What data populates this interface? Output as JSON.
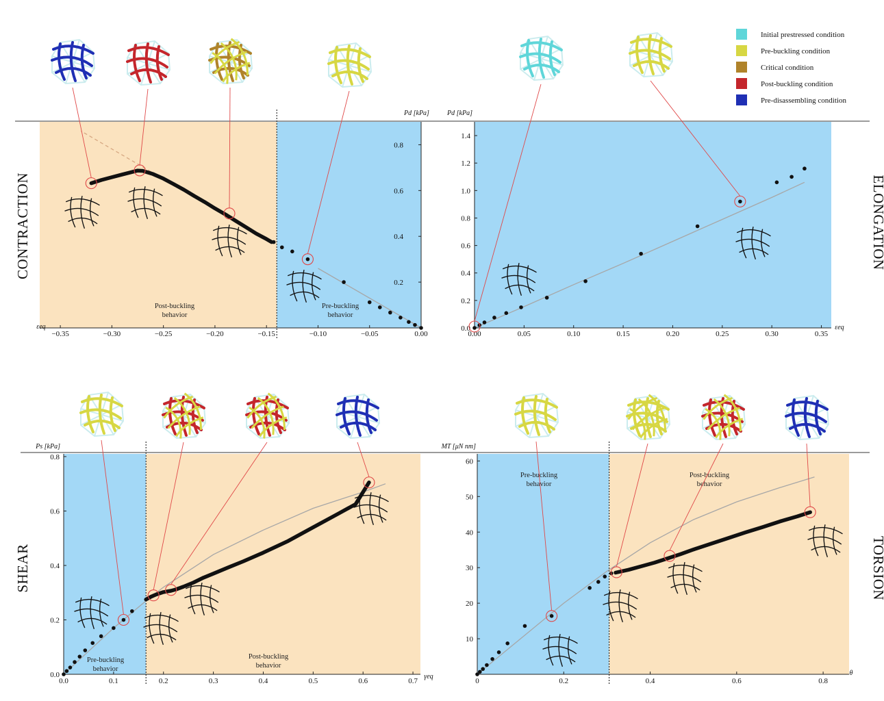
{
  "legend": [
    {
      "label": "Initial prestressed condition",
      "color": "#5fd6d9"
    },
    {
      "label": "Pre-buckling condition",
      "color": "#d7d743"
    },
    {
      "label": "Critical condition",
      "color": "#b0832a"
    },
    {
      "label": "Post-buckling condition",
      "color": "#c4262c"
    },
    {
      "label": "Pre-disassembling condition",
      "color": "#1f2fb4"
    }
  ],
  "colors": {
    "pre_buckling_region": "#a3d8f6",
    "post_buckling_region": "#fbe3bf",
    "marker": "#e04848",
    "data": "#111111",
    "fit": "#a7a7a7"
  },
  "chart_data": [
    {
      "id": "contraction",
      "type": "scatter",
      "panel_label": "CONTRACTION",
      "xlabel": "εeq",
      "ylabel": "Pd [kPa]",
      "xlim": [
        -0.37,
        0.0
      ],
      "ylim": [
        0.0,
        0.9
      ],
      "xticks": [
        -0.35,
        -0.3,
        -0.25,
        -0.2,
        -0.15,
        -0.1,
        -0.05,
        0.0
      ],
      "xtick_labels": [
        "−0.35",
        "−0.30",
        "−0.25",
        "−0.20",
        "−0.15",
        "−0.10",
        "−0.05",
        "0.00"
      ],
      "yticks": [
        0.2,
        0.4,
        0.6,
        0.8
      ],
      "ytick_labels": [
        "0.2",
        "0.4",
        "0.6",
        "0.8"
      ],
      "divider_x": -0.14,
      "regions": [
        {
          "label": [
            "Post-buckling",
            "behavior"
          ],
          "from": -0.37,
          "to": -0.14,
          "kind": "post"
        },
        {
          "label": [
            "Pre-buckling",
            "behavior"
          ],
          "from": -0.14,
          "to": 0.0,
          "kind": "pre"
        }
      ],
      "points": [
        [
          0.0,
          0.0
        ],
        [
          -0.006,
          0.013
        ],
        [
          -0.012,
          0.026
        ],
        [
          -0.02,
          0.045
        ],
        [
          -0.03,
          0.067
        ],
        [
          -0.04,
          0.09
        ],
        [
          -0.05,
          0.112
        ],
        [
          -0.075,
          0.2
        ],
        [
          -0.11,
          0.3
        ],
        [
          -0.125,
          0.334
        ],
        [
          -0.135,
          0.352
        ],
        [
          -0.143,
          0.375
        ]
      ],
      "curve": [
        [
          -0.145,
          0.375
        ],
        [
          -0.15,
          0.388
        ],
        [
          -0.16,
          0.412
        ],
        [
          -0.17,
          0.44
        ],
        [
          -0.18,
          0.468
        ],
        [
          -0.19,
          0.496
        ],
        [
          -0.2,
          0.522
        ],
        [
          -0.21,
          0.55
        ],
        [
          -0.22,
          0.576
        ],
        [
          -0.23,
          0.603
        ],
        [
          -0.24,
          0.628
        ],
        [
          -0.25,
          0.652
        ],
        [
          -0.26,
          0.672
        ],
        [
          -0.27,
          0.686
        ],
        [
          -0.275,
          0.687
        ],
        [
          -0.29,
          0.67
        ],
        [
          -0.3,
          0.658
        ],
        [
          -0.31,
          0.646
        ],
        [
          -0.32,
          0.632
        ]
      ],
      "fit": [
        [
          0.0,
          0.0
        ],
        [
          -0.1,
          0.26
        ],
        [
          -0.2,
          0.52
        ],
        [
          -0.33,
          0.86
        ]
      ],
      "fit_dashed_from": -0.14,
      "markers": [
        [
          -0.32,
          0.632
        ],
        [
          -0.273,
          0.688
        ],
        [
          -0.186,
          0.5
        ],
        [
          -0.11,
          0.3
        ]
      ]
    },
    {
      "id": "elongation",
      "type": "scatter",
      "panel_label": "ELONGATION",
      "xlabel": "εeq",
      "ylabel": "Pd [kPa]",
      "xlim": [
        0.0,
        0.36
      ],
      "ylim": [
        0.0,
        1.5
      ],
      "xticks": [
        0.0,
        0.05,
        0.1,
        0.15,
        0.2,
        0.25,
        0.3,
        0.35
      ],
      "xtick_labels": [
        "0.00",
        "0.05",
        "0.10",
        "0.15",
        "0.20",
        "0.25",
        "0.30",
        "0.35"
      ],
      "yticks": [
        0.0,
        0.2,
        0.4,
        0.6,
        0.8,
        1.0,
        1.2,
        1.4
      ],
      "ytick_labels": [
        "0.0",
        "0.2",
        "0.4",
        "0.6",
        "0.8",
        "1.0",
        "1.2",
        "1.4"
      ],
      "divider_x": null,
      "regions": [
        {
          "label": [],
          "from": 0.0,
          "to": 0.36,
          "kind": "pre"
        }
      ],
      "points": [
        [
          0.0,
          0.0
        ],
        [
          0.005,
          0.02
        ],
        [
          0.01,
          0.04
        ],
        [
          0.02,
          0.075
        ],
        [
          0.032,
          0.108
        ],
        [
          0.047,
          0.15
        ],
        [
          0.073,
          0.22
        ],
        [
          0.112,
          0.34
        ],
        [
          0.168,
          0.54
        ],
        [
          0.225,
          0.74
        ],
        [
          0.268,
          0.92
        ],
        [
          0.305,
          1.06
        ],
        [
          0.32,
          1.1
        ],
        [
          0.333,
          1.16
        ]
      ],
      "curve": [],
      "fit": [
        [
          0.0,
          0.0
        ],
        [
          0.05,
          0.155
        ],
        [
          0.1,
          0.315
        ],
        [
          0.15,
          0.47
        ],
        [
          0.2,
          0.63
        ],
        [
          0.25,
          0.79
        ],
        [
          0.3,
          0.95
        ],
        [
          0.333,
          1.06
        ]
      ],
      "fit_dashed_from": null,
      "markers": [
        [
          0.0,
          0.01
        ],
        [
          0.268,
          0.92
        ]
      ]
    },
    {
      "id": "shear",
      "type": "scatter",
      "panel_label": "SHEAR",
      "xlabel": "γeq",
      "ylabel": "Ps [kPa]",
      "xlim": [
        0.0,
        0.715
      ],
      "ylim": [
        0.0,
        0.81
      ],
      "xticks": [
        0.0,
        0.1,
        0.2,
        0.3,
        0.4,
        0.5,
        0.6,
        0.7
      ],
      "xtick_labels": [
        "0.0",
        "0.1",
        "0.2",
        "0.3",
        "0.4",
        "0.5",
        "0.6",
        "0.7"
      ],
      "yticks": [
        0.0,
        0.2,
        0.4,
        0.6,
        0.8
      ],
      "ytick_labels": [
        "0.0",
        "0.2",
        "0.4",
        "0.6",
        "0.8"
      ],
      "divider_x": 0.165,
      "regions": [
        {
          "label": [
            "Pre-buckling",
            "behavior"
          ],
          "from": 0.0,
          "to": 0.165,
          "kind": "pre"
        },
        {
          "label": [
            "Post-buckling",
            "behavior"
          ],
          "from": 0.165,
          "to": 0.715,
          "kind": "post"
        }
      ],
      "points": [
        [
          0.0,
          0.0
        ],
        [
          0.006,
          0.012
        ],
        [
          0.013,
          0.025
        ],
        [
          0.022,
          0.045
        ],
        [
          0.032,
          0.065
        ],
        [
          0.043,
          0.088
        ],
        [
          0.058,
          0.115
        ],
        [
          0.075,
          0.14
        ],
        [
          0.1,
          0.17
        ],
        [
          0.12,
          0.2
        ],
        [
          0.137,
          0.232
        ]
      ],
      "curve": [
        [
          0.165,
          0.275
        ],
        [
          0.175,
          0.285
        ],
        [
          0.185,
          0.293
        ],
        [
          0.2,
          0.302
        ],
        [
          0.215,
          0.307
        ],
        [
          0.225,
          0.312
        ],
        [
          0.24,
          0.322
        ],
        [
          0.26,
          0.337
        ],
        [
          0.28,
          0.355
        ],
        [
          0.3,
          0.37
        ],
        [
          0.33,
          0.393
        ],
        [
          0.36,
          0.415
        ],
        [
          0.4,
          0.447
        ],
        [
          0.45,
          0.49
        ],
        [
          0.5,
          0.54
        ],
        [
          0.55,
          0.59
        ],
        [
          0.585,
          0.625
        ],
        [
          0.612,
          0.705
        ]
      ],
      "fit": [
        [
          0.0,
          0.0
        ],
        [
          0.1,
          0.17
        ],
        [
          0.165,
          0.27
        ],
        [
          0.2,
          0.32
        ],
        [
          0.3,
          0.44
        ],
        [
          0.4,
          0.53
        ],
        [
          0.5,
          0.61
        ],
        [
          0.6,
          0.67
        ],
        [
          0.645,
          0.7
        ]
      ],
      "fit_dashed_from": null,
      "markers": [
        [
          0.12,
          0.2
        ],
        [
          0.18,
          0.29
        ],
        [
          0.215,
          0.31
        ],
        [
          0.612,
          0.705
        ]
      ]
    },
    {
      "id": "torsion",
      "type": "scatter",
      "panel_label": "TORSION",
      "xlabel": "θ",
      "ylabel": "MT [μN nm]",
      "xlim": [
        0.0,
        0.86
      ],
      "ylim": [
        0.0,
        62
      ],
      "xticks": [
        0.0,
        0.2,
        0.4,
        0.6,
        0.8
      ],
      "xtick_labels": [
        "0",
        "0.2",
        "0.4",
        "0.6",
        "0.8"
      ],
      "yticks": [
        10,
        20,
        30,
        40,
        50,
        60
      ],
      "ytick_labels": [
        "10",
        "20",
        "30",
        "40",
        "50",
        "60"
      ],
      "divider_x": 0.305,
      "regions": [
        {
          "label": [
            "Pre-buckling",
            "behavior"
          ],
          "from": 0.0,
          "to": 0.305,
          "kind": "pre"
        },
        {
          "label": [
            "Post-buckling",
            "behavior"
          ],
          "from": 0.305,
          "to": 0.86,
          "kind": "post"
        }
      ],
      "points": [
        [
          0.0,
          0.0
        ],
        [
          0.006,
          0.7
        ],
        [
          0.013,
          1.5
        ],
        [
          0.022,
          2.6
        ],
        [
          0.035,
          4.3
        ],
        [
          0.05,
          6.2
        ],
        [
          0.07,
          8.7
        ],
        [
          0.11,
          13.6
        ],
        [
          0.172,
          16.4
        ],
        [
          0.26,
          24.3
        ],
        [
          0.28,
          26.0
        ],
        [
          0.295,
          27.5
        ],
        [
          0.31,
          28.4
        ]
      ],
      "curve": [
        [
          0.32,
          28.6
        ],
        [
          0.35,
          29.4
        ],
        [
          0.38,
          30.4
        ],
        [
          0.41,
          31.4
        ],
        [
          0.44,
          32.6
        ],
        [
          0.47,
          33.8
        ],
        [
          0.5,
          35.1
        ],
        [
          0.54,
          36.7
        ],
        [
          0.58,
          38.3
        ],
        [
          0.62,
          39.9
        ],
        [
          0.66,
          41.4
        ],
        [
          0.7,
          43.0
        ],
        [
          0.74,
          44.4
        ],
        [
          0.77,
          45.6
        ]
      ],
      "fit": [
        [
          0.0,
          0.0
        ],
        [
          0.1,
          10.0
        ],
        [
          0.2,
          20.0
        ],
        [
          0.3,
          29.0
        ],
        [
          0.4,
          37.0
        ],
        [
          0.5,
          43.5
        ],
        [
          0.6,
          48.5
        ],
        [
          0.7,
          52.5
        ],
        [
          0.78,
          55.5
        ]
      ],
      "fit_dashed_from": null,
      "markers": [
        [
          0.172,
          16.4
        ],
        [
          0.322,
          28.7
        ],
        [
          0.445,
          33.3
        ],
        [
          0.77,
          45.6
        ]
      ]
    }
  ]
}
